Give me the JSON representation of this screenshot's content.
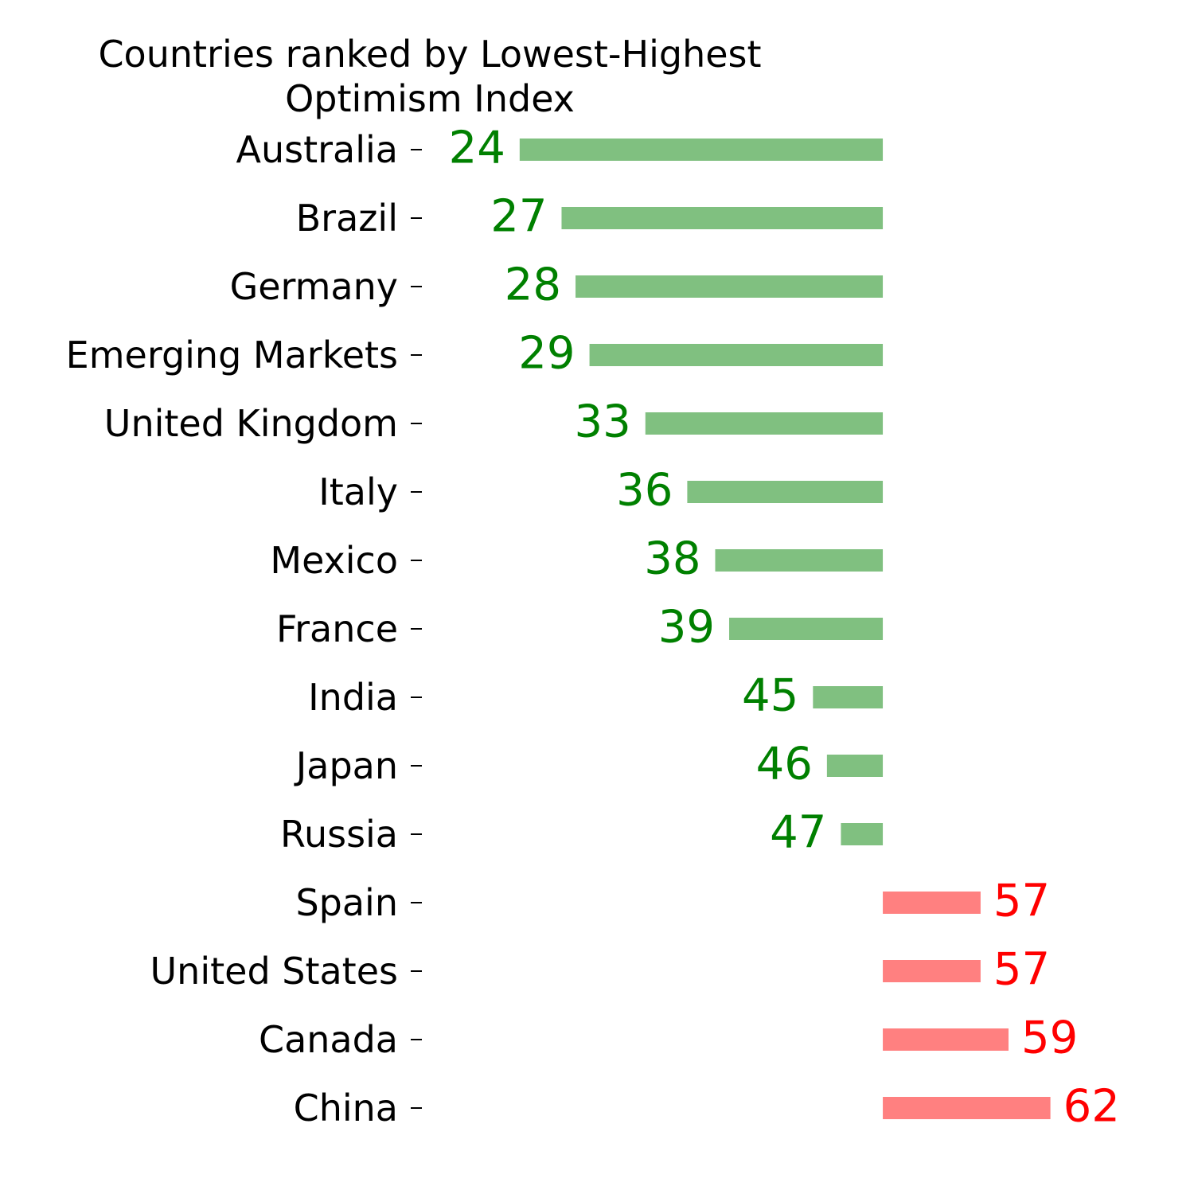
{
  "chart_data": {
    "type": "bar",
    "orientation": "horizontal",
    "title_lines": [
      "Countries ranked by Lowest-Highest",
      "Optimism Index"
    ],
    "baseline": 50,
    "categories": [
      "Australia",
      "Brazil",
      "Germany",
      "Emerging Markets",
      "United Kingdom",
      "Italy",
      "Mexico",
      "France",
      "India",
      "Japan",
      "Russia",
      "Spain",
      "United States",
      "Canada",
      "China"
    ],
    "values": [
      24,
      27,
      28,
      29,
      33,
      36,
      38,
      39,
      45,
      46,
      47,
      57,
      57,
      59,
      62
    ],
    "xlim": [
      17,
      70
    ],
    "colors": {
      "below_bar": "#80c080",
      "below_label": "#008000",
      "above_bar": "#ff8080",
      "above_label": "#ff0000"
    },
    "grid": false,
    "legend": "none"
  }
}
